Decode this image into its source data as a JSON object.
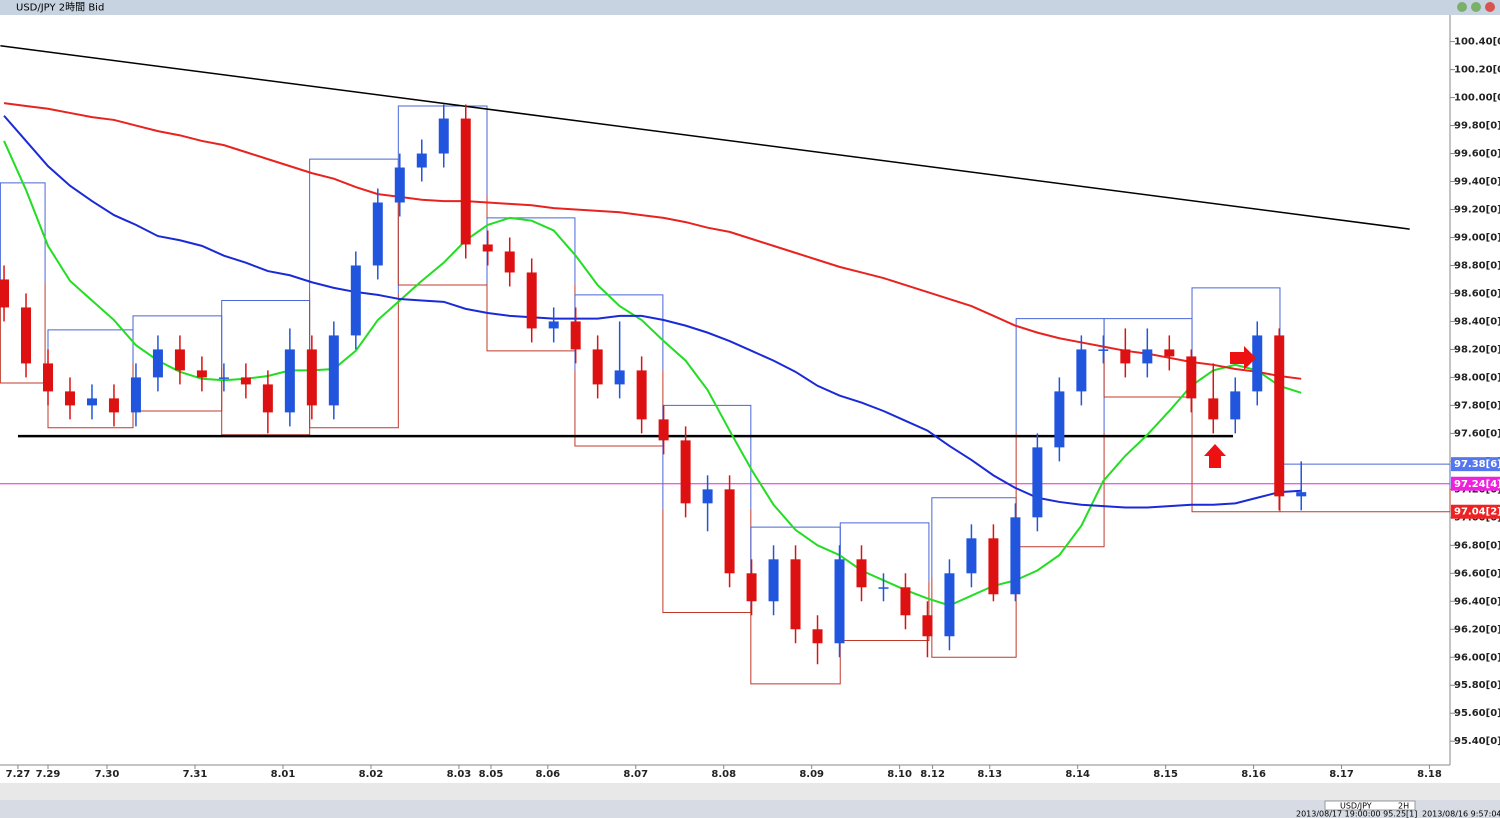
{
  "window_title": "USD/JPY 2時間 Bid",
  "chart_data": {
    "type": "candlestick",
    "xlim": [
      -0.55,
      197.3
    ],
    "ylim": [
      95.23,
      100.59
    ],
    "xticks": [
      {
        "value": 1.9,
        "label": "7.27"
      },
      {
        "value": 6.0,
        "label": "7.29"
      },
      {
        "value": 14.05,
        "label": "7.30"
      },
      {
        "value": 26.06,
        "label": "7.31"
      },
      {
        "value": 38.06,
        "label": "8.01"
      },
      {
        "value": 50.07,
        "label": "8.02"
      },
      {
        "value": 62.07,
        "label": "8.03"
      },
      {
        "value": 66.44,
        "label": "8.05"
      },
      {
        "value": 74.2,
        "label": "8.06"
      },
      {
        "value": 86.2,
        "label": "8.07"
      },
      {
        "value": 98.2,
        "label": "8.08"
      },
      {
        "value": 110.2,
        "label": "8.09"
      },
      {
        "value": 122.2,
        "label": "8.10"
      },
      {
        "value": 126.7,
        "label": "8.12"
      },
      {
        "value": 134.5,
        "label": "8.13"
      },
      {
        "value": 146.5,
        "label": "8.14"
      },
      {
        "value": 158.5,
        "label": "8.15"
      },
      {
        "value": 170.5,
        "label": "8.16"
      },
      {
        "value": 182.5,
        "label": "8.17"
      },
      {
        "value": 194.5,
        "label": "8.18"
      }
    ],
    "yticks": [
      {
        "value": 100.4,
        "label": "100.40[0]"
      },
      {
        "value": 100.2,
        "label": "100.20[0]"
      },
      {
        "value": 100.0,
        "label": "100.00[0]"
      },
      {
        "value": 99.8,
        "label": "99.80[0]"
      },
      {
        "value": 99.6,
        "label": "99.60[0]"
      },
      {
        "value": 99.4,
        "label": "99.40[0]"
      },
      {
        "value": 99.2,
        "label": "99.20[0]"
      },
      {
        "value": 99.0,
        "label": "99.00[0]"
      },
      {
        "value": 98.8,
        "label": "98.80[0]"
      },
      {
        "value": 98.6,
        "label": "98.60[0]"
      },
      {
        "value": 98.4,
        "label": "98.40[0]"
      },
      {
        "value": 98.2,
        "label": "98.20[0]"
      },
      {
        "value": 98.0,
        "label": "98.00[0]"
      },
      {
        "value": 97.8,
        "label": "97.80[0]"
      },
      {
        "value": 97.6,
        "label": "97.60[0]"
      },
      {
        "value": 97.4,
        "label": "97.40[0]"
      },
      {
        "value": 97.2,
        "label": "97.20[0]"
      },
      {
        "value": 97.0,
        "label": "97.00[0]"
      },
      {
        "value": 96.8,
        "label": "96.80[0]"
      },
      {
        "value": 96.6,
        "label": "96.60[0]"
      },
      {
        "value": 96.4,
        "label": "96.40[0]"
      },
      {
        "value": 96.2,
        "label": "96.20[0]"
      },
      {
        "value": 96.0,
        "label": "96.00[0]"
      },
      {
        "value": 95.8,
        "label": "95.80[0]"
      },
      {
        "value": 95.6,
        "label": "95.60[0]"
      },
      {
        "value": 95.4,
        "label": "95.40[0]"
      }
    ],
    "up_color": "#2255dd",
    "down_color": "#dd1111",
    "x": [
      0,
      3,
      6,
      9,
      12,
      15,
      18,
      21,
      24,
      27,
      30,
      33,
      36,
      39,
      42,
      45,
      48,
      51,
      54,
      57,
      60,
      63,
      66,
      69,
      72,
      75,
      78,
      81,
      84,
      87,
      90,
      93,
      96,
      99,
      102,
      105,
      108,
      111,
      114,
      117,
      120,
      123,
      126,
      129,
      132,
      135,
      138,
      141,
      144,
      147,
      150,
      153,
      156,
      159,
      162,
      165,
      168,
      171,
      174,
      177
    ],
    "open": [
      98.7,
      98.5,
      98.1,
      97.9,
      97.8,
      97.85,
      97.75,
      98.0,
      98.2,
      98.05,
      98.0,
      98.0,
      97.95,
      97.75,
      98.2,
      97.8,
      98.3,
      98.8,
      99.25,
      99.5,
      99.6,
      99.85,
      98.95,
      98.9,
      98.75,
      98.35,
      98.4,
      98.2,
      97.95,
      98.05,
      97.7,
      97.55,
      97.1,
      97.2,
      96.6,
      96.4,
      96.7,
      96.2,
      96.1,
      96.7,
      96.5,
      96.5,
      96.3,
      96.15,
      96.6,
      96.85,
      96.45,
      97.0,
      97.5,
      97.9,
      98.2,
      98.2,
      98.1,
      98.2,
      98.15,
      97.85,
      97.7,
      97.9,
      98.3,
      97.15
    ],
    "high": [
      98.8,
      98.6,
      98.2,
      98.0,
      97.95,
      97.95,
      98.1,
      98.3,
      98.3,
      98.15,
      98.1,
      98.1,
      98.05,
      98.35,
      98.3,
      98.4,
      98.9,
      99.35,
      99.6,
      99.7,
      99.95,
      99.95,
      99.05,
      99.0,
      98.85,
      98.5,
      98.5,
      98.3,
      98.4,
      98.15,
      97.8,
      97.65,
      97.3,
      97.3,
      96.7,
      96.8,
      96.8,
      96.3,
      96.8,
      96.8,
      96.6,
      96.6,
      96.4,
      96.7,
      96.95,
      96.95,
      97.1,
      97.6,
      98.0,
      98.3,
      98.3,
      98.35,
      98.35,
      98.3,
      98.2,
      98.1,
      98.0,
      98.4,
      98.35,
      97.4
    ],
    "low": [
      98.4,
      98.0,
      97.8,
      97.7,
      97.7,
      97.65,
      97.65,
      97.9,
      97.95,
      97.9,
      97.9,
      97.85,
      97.6,
      97.65,
      97.7,
      97.7,
      98.2,
      98.7,
      99.15,
      99.4,
      99.5,
      98.85,
      98.8,
      98.65,
      98.25,
      98.25,
      98.1,
      97.85,
      97.85,
      97.6,
      97.45,
      97.0,
      96.9,
      96.5,
      96.3,
      96.3,
      96.1,
      95.95,
      96.0,
      96.4,
      96.4,
      96.2,
      96.0,
      96.05,
      96.5,
      96.4,
      96.4,
      96.9,
      97.4,
      97.8,
      98.1,
      98.0,
      98.0,
      98.05,
      97.75,
      97.6,
      97.6,
      97.8,
      97.05,
      97.05
    ],
    "close": [
      98.5,
      98.1,
      97.9,
      97.8,
      97.85,
      97.75,
      98.0,
      98.2,
      98.05,
      98.0,
      98.0,
      97.95,
      97.75,
      98.2,
      97.8,
      98.3,
      98.8,
      99.25,
      99.5,
      99.6,
      99.85,
      98.95,
      98.9,
      98.75,
      98.35,
      98.4,
      98.2,
      97.95,
      98.05,
      97.7,
      97.55,
      97.1,
      97.2,
      96.6,
      96.4,
      96.7,
      96.2,
      96.1,
      96.7,
      96.5,
      96.5,
      96.3,
      96.15,
      96.6,
      96.85,
      96.45,
      97.0,
      97.5,
      97.9,
      98.2,
      98.2,
      98.1,
      98.2,
      98.15,
      97.85,
      97.7,
      97.9,
      98.3,
      97.15,
      97.18
    ],
    "ma": [
      {
        "color": "#22dd22",
        "values": [
          99.69,
          99.34,
          98.94,
          98.69,
          98.55,
          98.41,
          98.23,
          98.12,
          98.04,
          97.99,
          97.98,
          97.99,
          98.01,
          98.05,
          98.05,
          98.06,
          98.19,
          98.41,
          98.55,
          98.69,
          98.82,
          98.98,
          99.09,
          99.14,
          99.12,
          99.05,
          98.87,
          98.66,
          98.51,
          98.41,
          98.26,
          98.12,
          97.91,
          97.62,
          97.34,
          97.09,
          96.91,
          96.8,
          96.73,
          96.62,
          96.55,
          96.48,
          96.42,
          96.37,
          96.44,
          96.51,
          96.55,
          96.62,
          96.73,
          96.94,
          97.26,
          97.44,
          97.59,
          97.76,
          97.94,
          98.05,
          98.09,
          98.05,
          97.94,
          97.89
        ]
      },
      {
        "color": "#1a2ad6",
        "values": [
          99.87,
          99.69,
          99.51,
          99.37,
          99.26,
          99.16,
          99.09,
          99.01,
          98.98,
          98.94,
          98.87,
          98.82,
          98.76,
          98.73,
          98.68,
          98.64,
          98.61,
          98.59,
          98.56,
          98.55,
          98.54,
          98.49,
          98.46,
          98.44,
          98.43,
          98.42,
          98.42,
          98.42,
          98.44,
          98.44,
          98.41,
          98.37,
          98.32,
          98.26,
          98.19,
          98.12,
          98.04,
          97.94,
          97.87,
          97.82,
          97.76,
          97.69,
          97.62,
          97.51,
          97.41,
          97.3,
          97.21,
          97.14,
          97.11,
          97.09,
          97.08,
          97.07,
          97.07,
          97.08,
          97.09,
          97.09,
          97.1,
          97.14,
          97.18,
          97.19
        ]
      },
      {
        "color": "#e8231f",
        "values": [
          99.96,
          99.94,
          99.92,
          99.89,
          99.86,
          99.84,
          99.8,
          99.76,
          99.73,
          99.69,
          99.66,
          99.61,
          99.56,
          99.51,
          99.46,
          99.42,
          99.36,
          99.31,
          99.29,
          99.27,
          99.26,
          99.26,
          99.25,
          99.24,
          99.23,
          99.21,
          99.2,
          99.19,
          99.18,
          99.16,
          99.14,
          99.11,
          99.07,
          99.04,
          98.99,
          98.94,
          98.89,
          98.84,
          98.79,
          98.75,
          98.71,
          98.66,
          98.61,
          98.56,
          98.51,
          98.44,
          98.37,
          98.32,
          98.28,
          98.25,
          98.22,
          98.19,
          98.17,
          98.14,
          98.11,
          98.09,
          98.06,
          98.04,
          98.01,
          97.99
        ]
      }
    ],
    "boxes": [
      {
        "x0": -0.5,
        "x1": 5.6,
        "high": 99.39,
        "low": 97.96
      },
      {
        "x0": 6.0,
        "x1": 17.6,
        "high": 98.34,
        "low": 97.64
      },
      {
        "x0": 17.6,
        "x1": 29.7,
        "high": 98.44,
        "low": 97.76
      },
      {
        "x0": 29.7,
        "x1": 41.7,
        "high": 98.55,
        "low": 97.59
      },
      {
        "x0": 41.7,
        "x1": 53.8,
        "high": 99.56,
        "low": 97.64
      },
      {
        "x0": 53.8,
        "x1": 65.9,
        "high": 99.94,
        "low": 98.66
      },
      {
        "x0": 65.9,
        "x1": 77.9,
        "high": 99.14,
        "low": 98.19
      },
      {
        "x0": 77.9,
        "x1": 89.9,
        "high": 98.59,
        "low": 97.51
      },
      {
        "x0": 89.9,
        "x1": 101.9,
        "high": 97.8,
        "low": 96.32
      },
      {
        "x0": 101.9,
        "x1": 114.1,
        "high": 96.93,
        "low": 95.81
      },
      {
        "x0": 114.1,
        "x1": 126.2,
        "high": 96.96,
        "low": 96.12
      },
      {
        "x0": 126.6,
        "x1": 138.1,
        "high": 97.14,
        "low": 96.0
      },
      {
        "x0": 138.1,
        "x1": 150.1,
        "high": 98.42,
        "low": 96.79
      },
      {
        "x0": 150.1,
        "x1": 162.1,
        "high": 98.42,
        "low": 97.86
      },
      {
        "x0": 162.1,
        "x1": 174.1,
        "high": 98.64,
        "low": 97.04
      },
      {
        "x0": 174.1,
        "x1": 197.3,
        "high": 97.38,
        "low": 97.04
      }
    ],
    "trendlines": [
      {
        "x": [
          -0.5,
          191.8
        ],
        "y": [
          100.37,
          99.06
        ]
      },
      {
        "x": [
          1.9,
          167.7
        ],
        "y": [
          97.58,
          97.58
        ]
      }
    ],
    "current_line": 97.24,
    "price_labels": [
      {
        "value": 97.38,
        "label": "97.38[6]",
        "color": "#5577ee"
      },
      {
        "value": 97.24,
        "label": "97.24[4]",
        "color": "#ee22dd"
      },
      {
        "value": 97.04,
        "label": "97.04[2]",
        "color": "#ee2222"
      }
    ]
  },
  "status": {
    "symbol": "USD/JPY",
    "period": "2H",
    "cursor": "2013/08/17 19:00:00  95.25[1]",
    "clock": "2013/08/16 9:57:04"
  }
}
